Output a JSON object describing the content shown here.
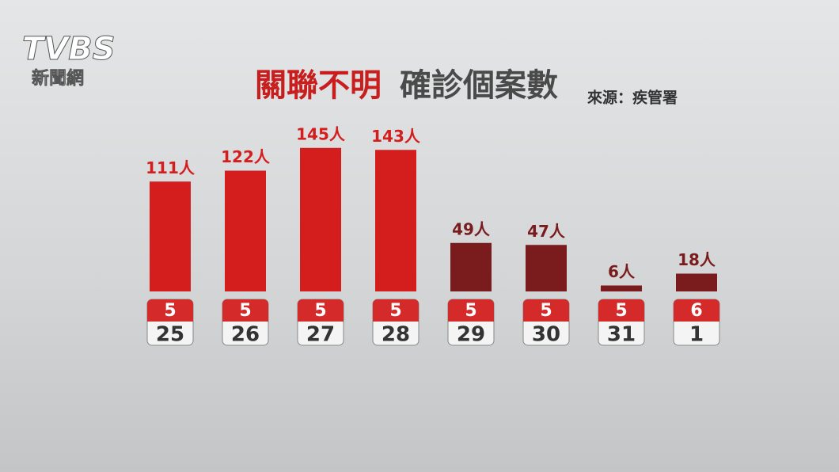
{
  "logo": {
    "brand": "TVBS",
    "sub": "新聞網"
  },
  "chart_data": {
    "type": "bar",
    "title_parts": [
      "關聯不明",
      "確診個案數"
    ],
    "source": "來源：疾管署",
    "categories": [
      {
        "month": "5",
        "day": "25"
      },
      {
        "month": "5",
        "day": "26"
      },
      {
        "month": "5",
        "day": "27"
      },
      {
        "month": "5",
        "day": "28"
      },
      {
        "month": "5",
        "day": "29"
      },
      {
        "month": "5",
        "day": "30"
      },
      {
        "month": "5",
        "day": "31"
      },
      {
        "month": "6",
        "day": "1"
      }
    ],
    "values": [
      111,
      122,
      145,
      143,
      49,
      47,
      6,
      18
    ],
    "value_labels": [
      "111人",
      "122人",
      "145人",
      "143人",
      "49人",
      "47人",
      "6人",
      "18人"
    ],
    "colors": [
      "#d41e1e",
      "#d41e1e",
      "#d41e1e",
      "#d41e1e",
      "#7a1c1e",
      "#7a1c1e",
      "#7a1c1e",
      "#7a1c1e"
    ]
  }
}
